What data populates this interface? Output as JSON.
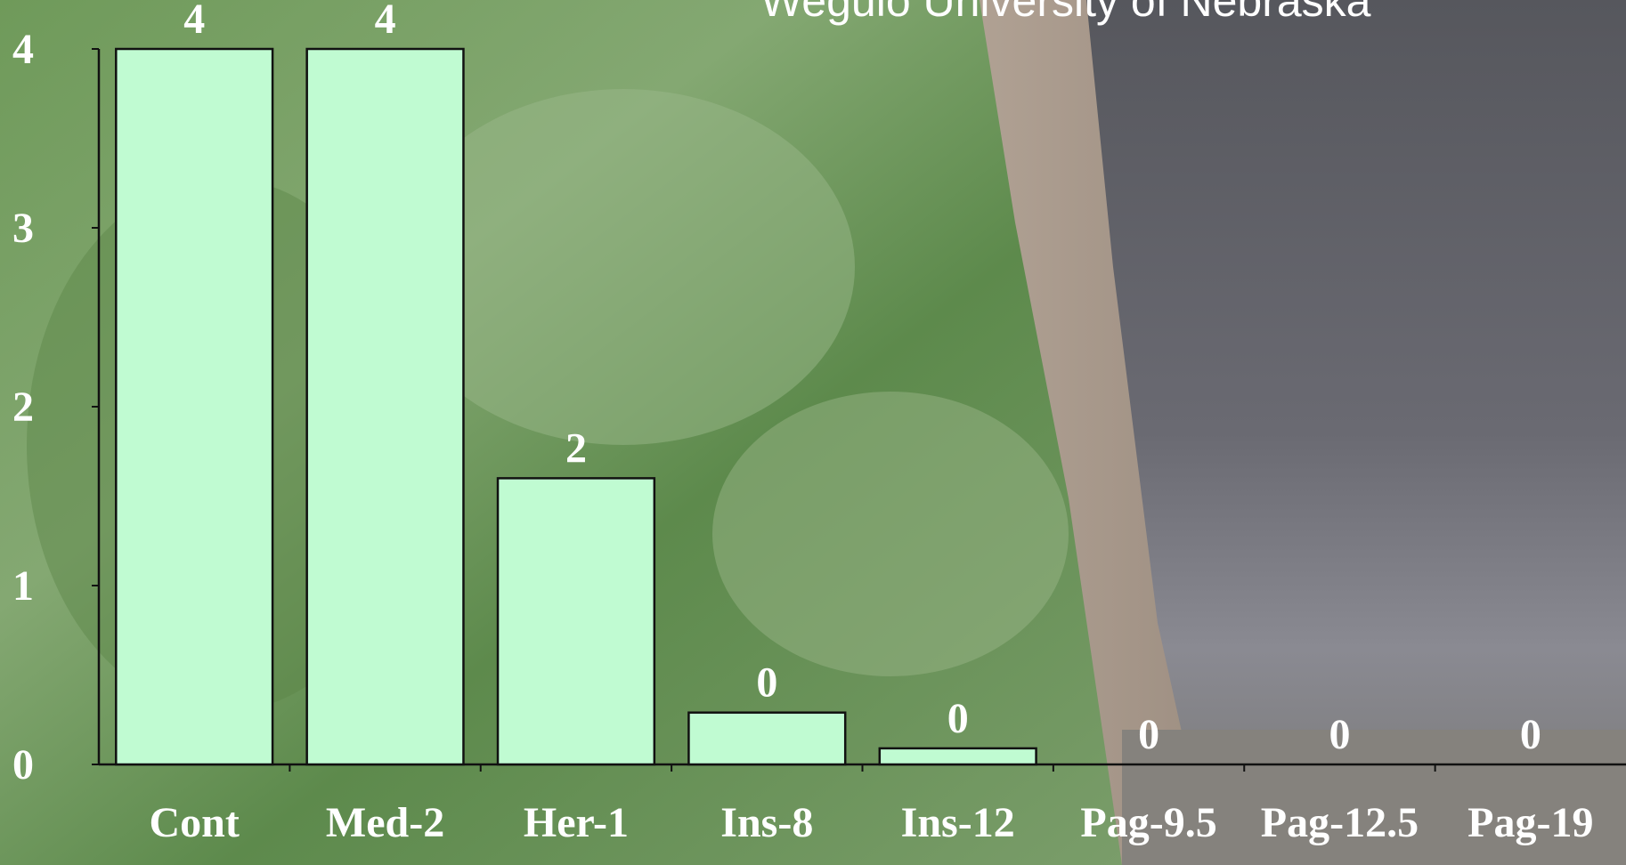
{
  "chart_data": {
    "type": "bar",
    "title": "Wegulo University of Nebraska",
    "categories": [
      "Cont",
      "Med-2",
      "Her-1",
      "Ins-8",
      "Ins-12",
      "Pag-9.5",
      "Pag-12.5",
      "Pag-19"
    ],
    "values": [
      4,
      4,
      1.6,
      0.29,
      0.09,
      0,
      0,
      0
    ],
    "value_labels": [
      "4",
      "4",
      "2",
      "0",
      "0",
      "0",
      "0",
      "0"
    ],
    "color": "#c0fbd2",
    "ylim": [
      0,
      4
    ],
    "yticks": [
      0,
      1,
      2,
      3,
      4
    ]
  }
}
